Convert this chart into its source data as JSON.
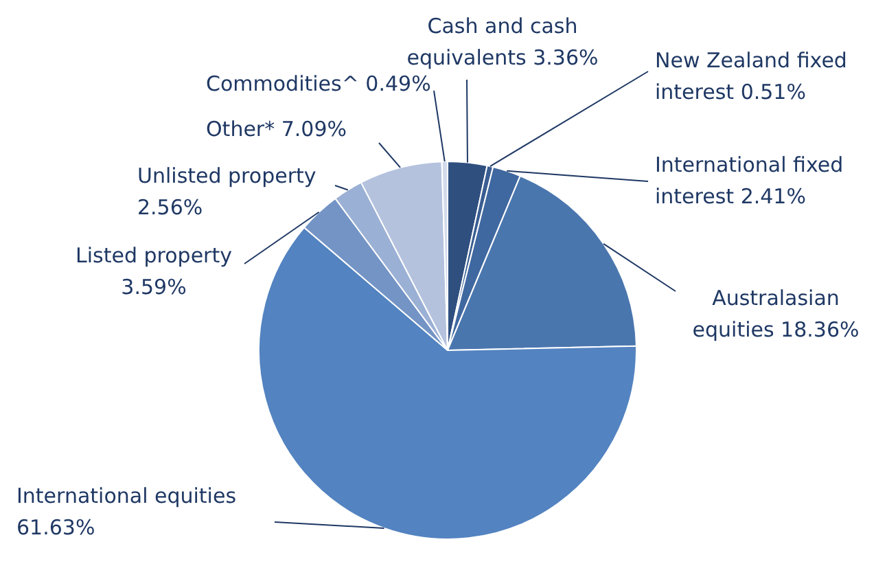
{
  "chart_data": {
    "type": "pie",
    "categories": [
      "Cash and cash equivalents",
      "New Zealand fixed interest",
      "International fixed interest",
      "Australasian equities",
      "International equities",
      "Listed property",
      "Unlisted property",
      "Other*",
      "Commodities^"
    ],
    "values": [
      3.36,
      0.51,
      2.41,
      18.36,
      61.63,
      3.59,
      2.56,
      7.09,
      0.49
    ],
    "value_labels": [
      "3.36%",
      "0.51%",
      "2.41%",
      "18.36%",
      "61.63%",
      "3.59%",
      "2.56%",
      "7.09%",
      "0.49%"
    ],
    "colors": [
      "#2f4f7f",
      "#3a5e92",
      "#4068a0",
      "#4a76ae",
      "#5383c0",
      "#7494c6",
      "#9bb0d5",
      "#b4c2de",
      "#d3dbeb"
    ],
    "legend": false
  }
}
